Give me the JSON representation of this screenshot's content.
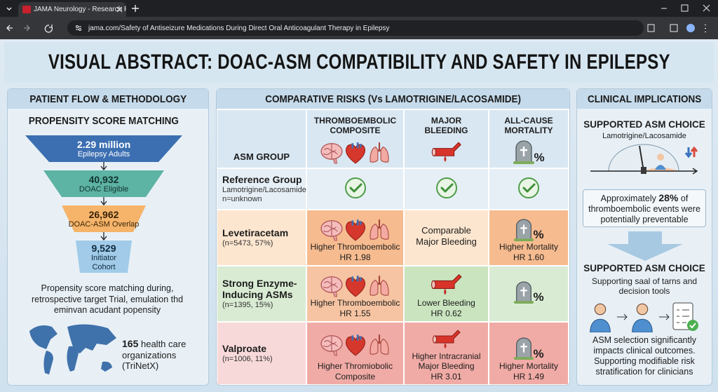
{
  "browser": {
    "tab_title": "JAMA Neurology - Research P",
    "url": "jama.com/Safety of Antiseizure Medications During Direct Oral Anticoagulant Therapy in Epilepsy"
  },
  "header": {
    "title": "VISUAL ABSTRACT:  DOAC-ASM COMPATIBILITY AND SAFETY IN EPILEPSY"
  },
  "patient_flow": {
    "heading": "PATIENT FLOW & METHODOLOGY",
    "subheading": "PROPENSITY SCORE MATCHING",
    "funnel": [
      {
        "value": "2.29 million",
        "label": "Epilepsy Adults"
      },
      {
        "value": "40,932",
        "label": "DOAC Eligible"
      },
      {
        "value": "26,962",
        "label": "DOAC-ASM Overlap"
      },
      {
        "value": "9,529",
        "label": "Initiator Cohort"
      }
    ],
    "description": "Propensity score matching during, retrospective target Trial, emulation thd eminvan acudant popensity",
    "source": {
      "count": "165",
      "text": "health care organizations (TriNetX)"
    }
  },
  "comparative_risks": {
    "heading": "COMPARATIVE RISKS (Vs LAMOTRIGINE/LACOSAMIDE)",
    "columns": [
      "ASM GROUP",
      "THROMBOEMBOLIC COMPOSITE",
      "MAJOR BLEEDING",
      "ALL-CAUSE MORTALITY"
    ],
    "percent_sign": "%",
    "rows": [
      {
        "group": "Reference Group",
        "detail": "Lamotrigine/Lacosamide",
        "n": "n=unknown"
      },
      {
        "group": "Levetiracetam",
        "n": "(n=5473, 57%)",
        "thromboembolic": {
          "text": "Higher Thromboembolic",
          "hr": "HR 1.98"
        },
        "bleeding": {
          "text": "Comparable Major Bleeding"
        },
        "mortality": {
          "text": "Higher Mortality",
          "hr": "HR 1.60"
        }
      },
      {
        "group": "Strong Enzyme-Inducing ASMs",
        "n": "(n=1395, 15%)",
        "thromboembolic": {
          "text": "Higher Thromboembolic",
          "hr": "HR 1.55"
        },
        "bleeding": {
          "text": "Lower Bleeding",
          "hr": "HR 0.62"
        }
      },
      {
        "group": "Valproate",
        "n": "(n=1006, 11%)",
        "thromboembolic": {
          "text": "Higher Thromiobolic Composite"
        },
        "bleeding": {
          "text": "Higher Intracranial Major Bleeding",
          "hr": "HR 3.01"
        },
        "mortality": {
          "text": "Higher Mortality",
          "hr": "HR 1.49"
        }
      }
    ]
  },
  "clinical_implications": {
    "heading": "CLINICAL IMPLICATIONS",
    "choice_heading": "SUPPORTED ASM CHOICE",
    "choice_drugs": "Lamotrigine/Lacosamide",
    "preventable": {
      "before": "Approximately",
      "highlight": "28%",
      "after": "of thromboembolic events were potentially preventable"
    },
    "tools_heading": "SUPPORTED ASM CHOICE",
    "tools_text": "Supporting saal of tarns and decision tools",
    "conclusion": "ASM selection significantly impacts clinical outcomes. Supporting modifiable risk stratification for clinicians"
  }
}
